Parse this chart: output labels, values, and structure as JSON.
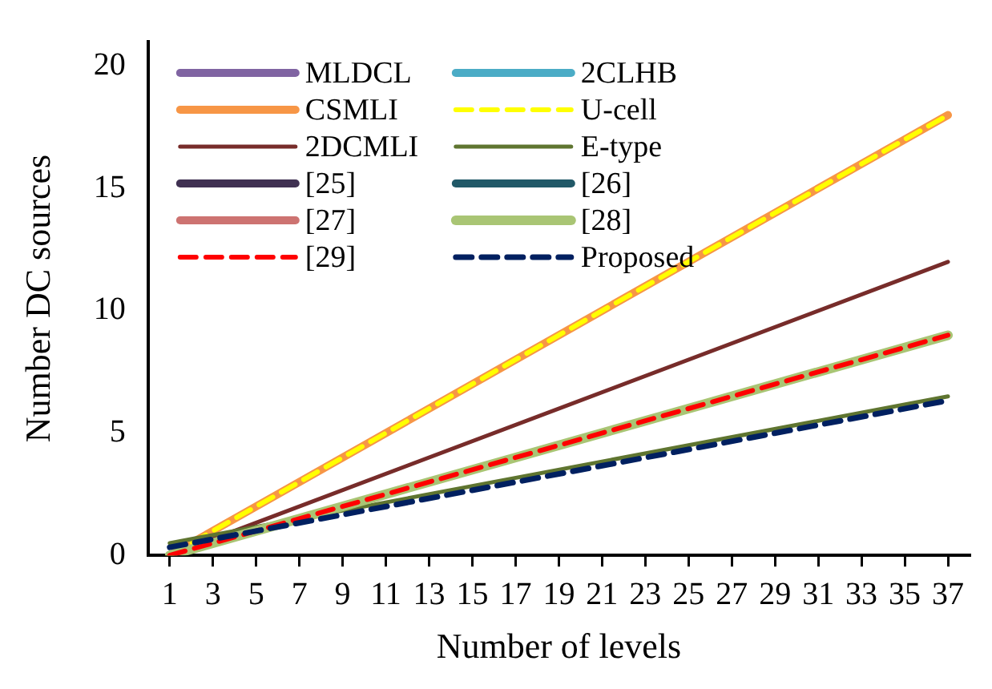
{
  "chart_data": {
    "type": "line",
    "xlabel": "Number of levels",
    "ylabel": "Number DC sources",
    "xlim": [
      0,
      38
    ],
    "xticks": [
      1,
      3,
      5,
      7,
      9,
      11,
      13,
      15,
      17,
      19,
      21,
      23,
      25,
      27,
      29,
      31,
      33,
      35,
      37
    ],
    "ylim": [
      0,
      21
    ],
    "yticks": [
      0,
      5,
      10,
      15,
      20
    ],
    "grid": false,
    "legend": "top left",
    "marker": "none",
    "x": [
      1,
      37
    ],
    "series": [
      {
        "name": "MLDCL",
        "color": "#8064a2",
        "values": [
          null,
          null
        ]
      },
      {
        "name": "2CLHB",
        "color": "#4bacc6",
        "values": [
          null,
          null
        ]
      },
      {
        "name": "CSMLI",
        "color": "#f79646",
        "values": [
          0,
          18
        ]
      },
      {
        "name": "U-cell",
        "color": "#ffff00",
        "values": [
          0,
          18
        ],
        "line_style": "dashed"
      },
      {
        "name": "2DCMLI",
        "color": "#772c2a",
        "values": [
          0,
          12
        ]
      },
      {
        "name": "E-type",
        "color": "#5f7530",
        "values": [
          0.5,
          6.5
        ]
      },
      {
        "name": "[25]",
        "color": "#403152",
        "values": [
          null,
          null
        ]
      },
      {
        "name": "[26]",
        "color": "#215968",
        "values": [
          null,
          null
        ]
      },
      {
        "name": "[27]",
        "color": "#cd7371",
        "values": [
          null,
          null
        ]
      },
      {
        "name": "[28]",
        "color": "#a9c574",
        "values": [
          0,
          9
        ]
      },
      {
        "name": "[29]",
        "color": "#ff0000",
        "values": [
          0,
          9
        ],
        "line_style": "dashed"
      },
      {
        "name": "Proposed",
        "color": "#002060",
        "values": [
          0.33,
          6.33
        ],
        "line_style": "dashed"
      }
    ]
  }
}
